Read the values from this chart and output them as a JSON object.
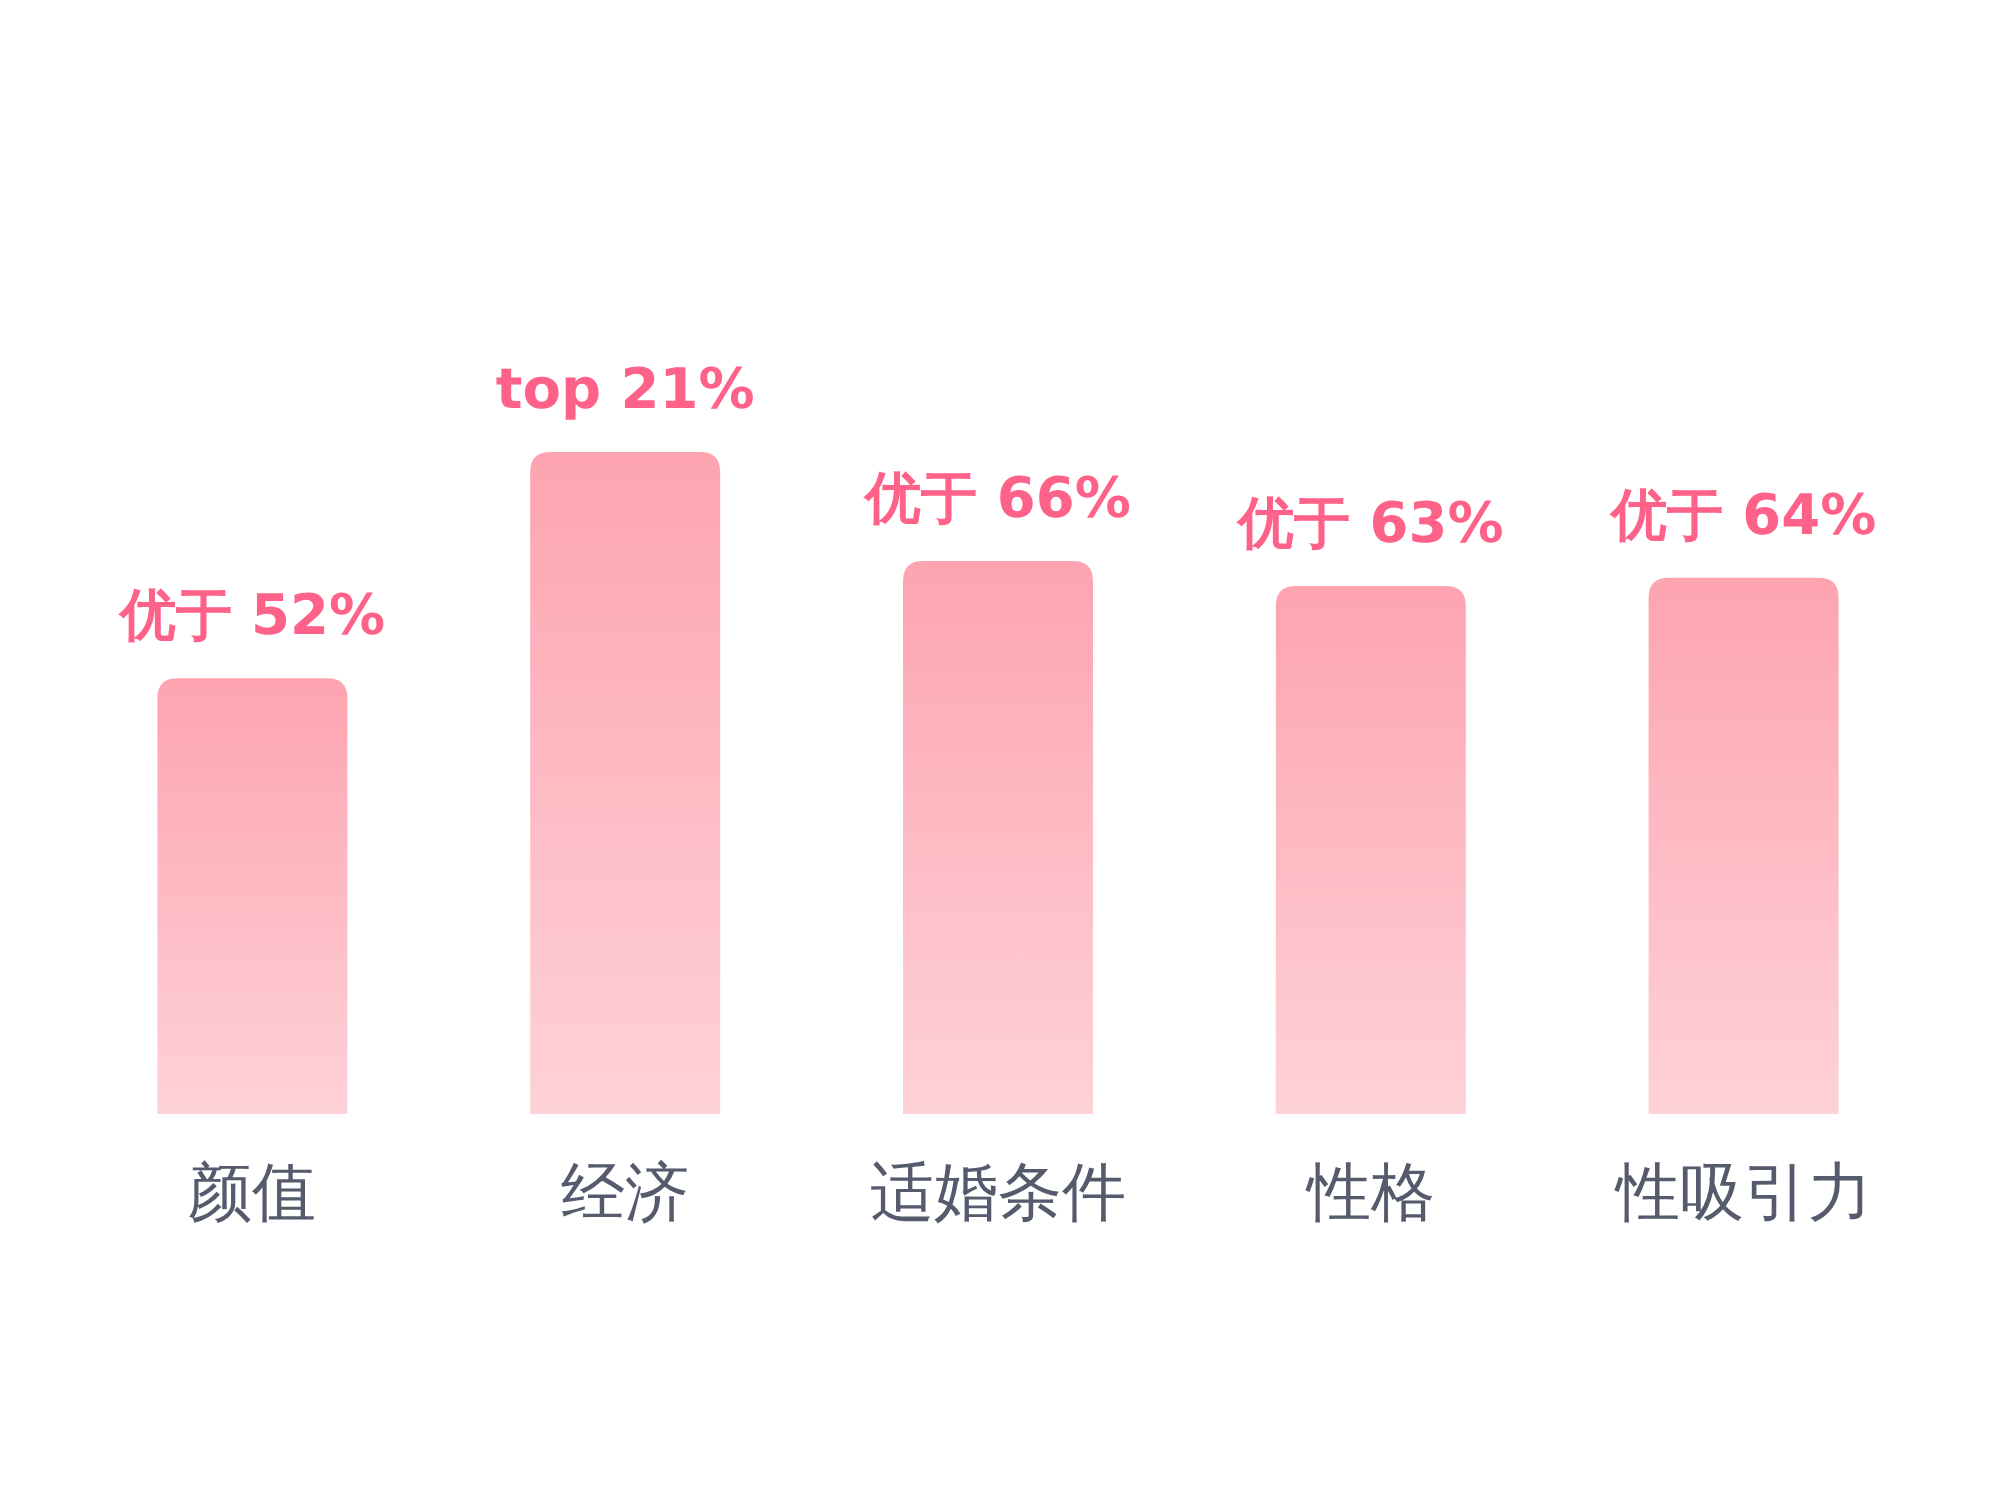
{
  "chart_data": {
    "type": "bar",
    "categories": [
      "颜值",
      "经济",
      "适婚条件",
      "性格",
      "性吸引力"
    ],
    "values": [
      52,
      79,
      66,
      63,
      64
    ],
    "value_labels": [
      "优于 52%",
      "top 21%",
      "优于 66%",
      "优于 63%",
      "优于 64%"
    ],
    "color": "#fda4b0"
  }
}
